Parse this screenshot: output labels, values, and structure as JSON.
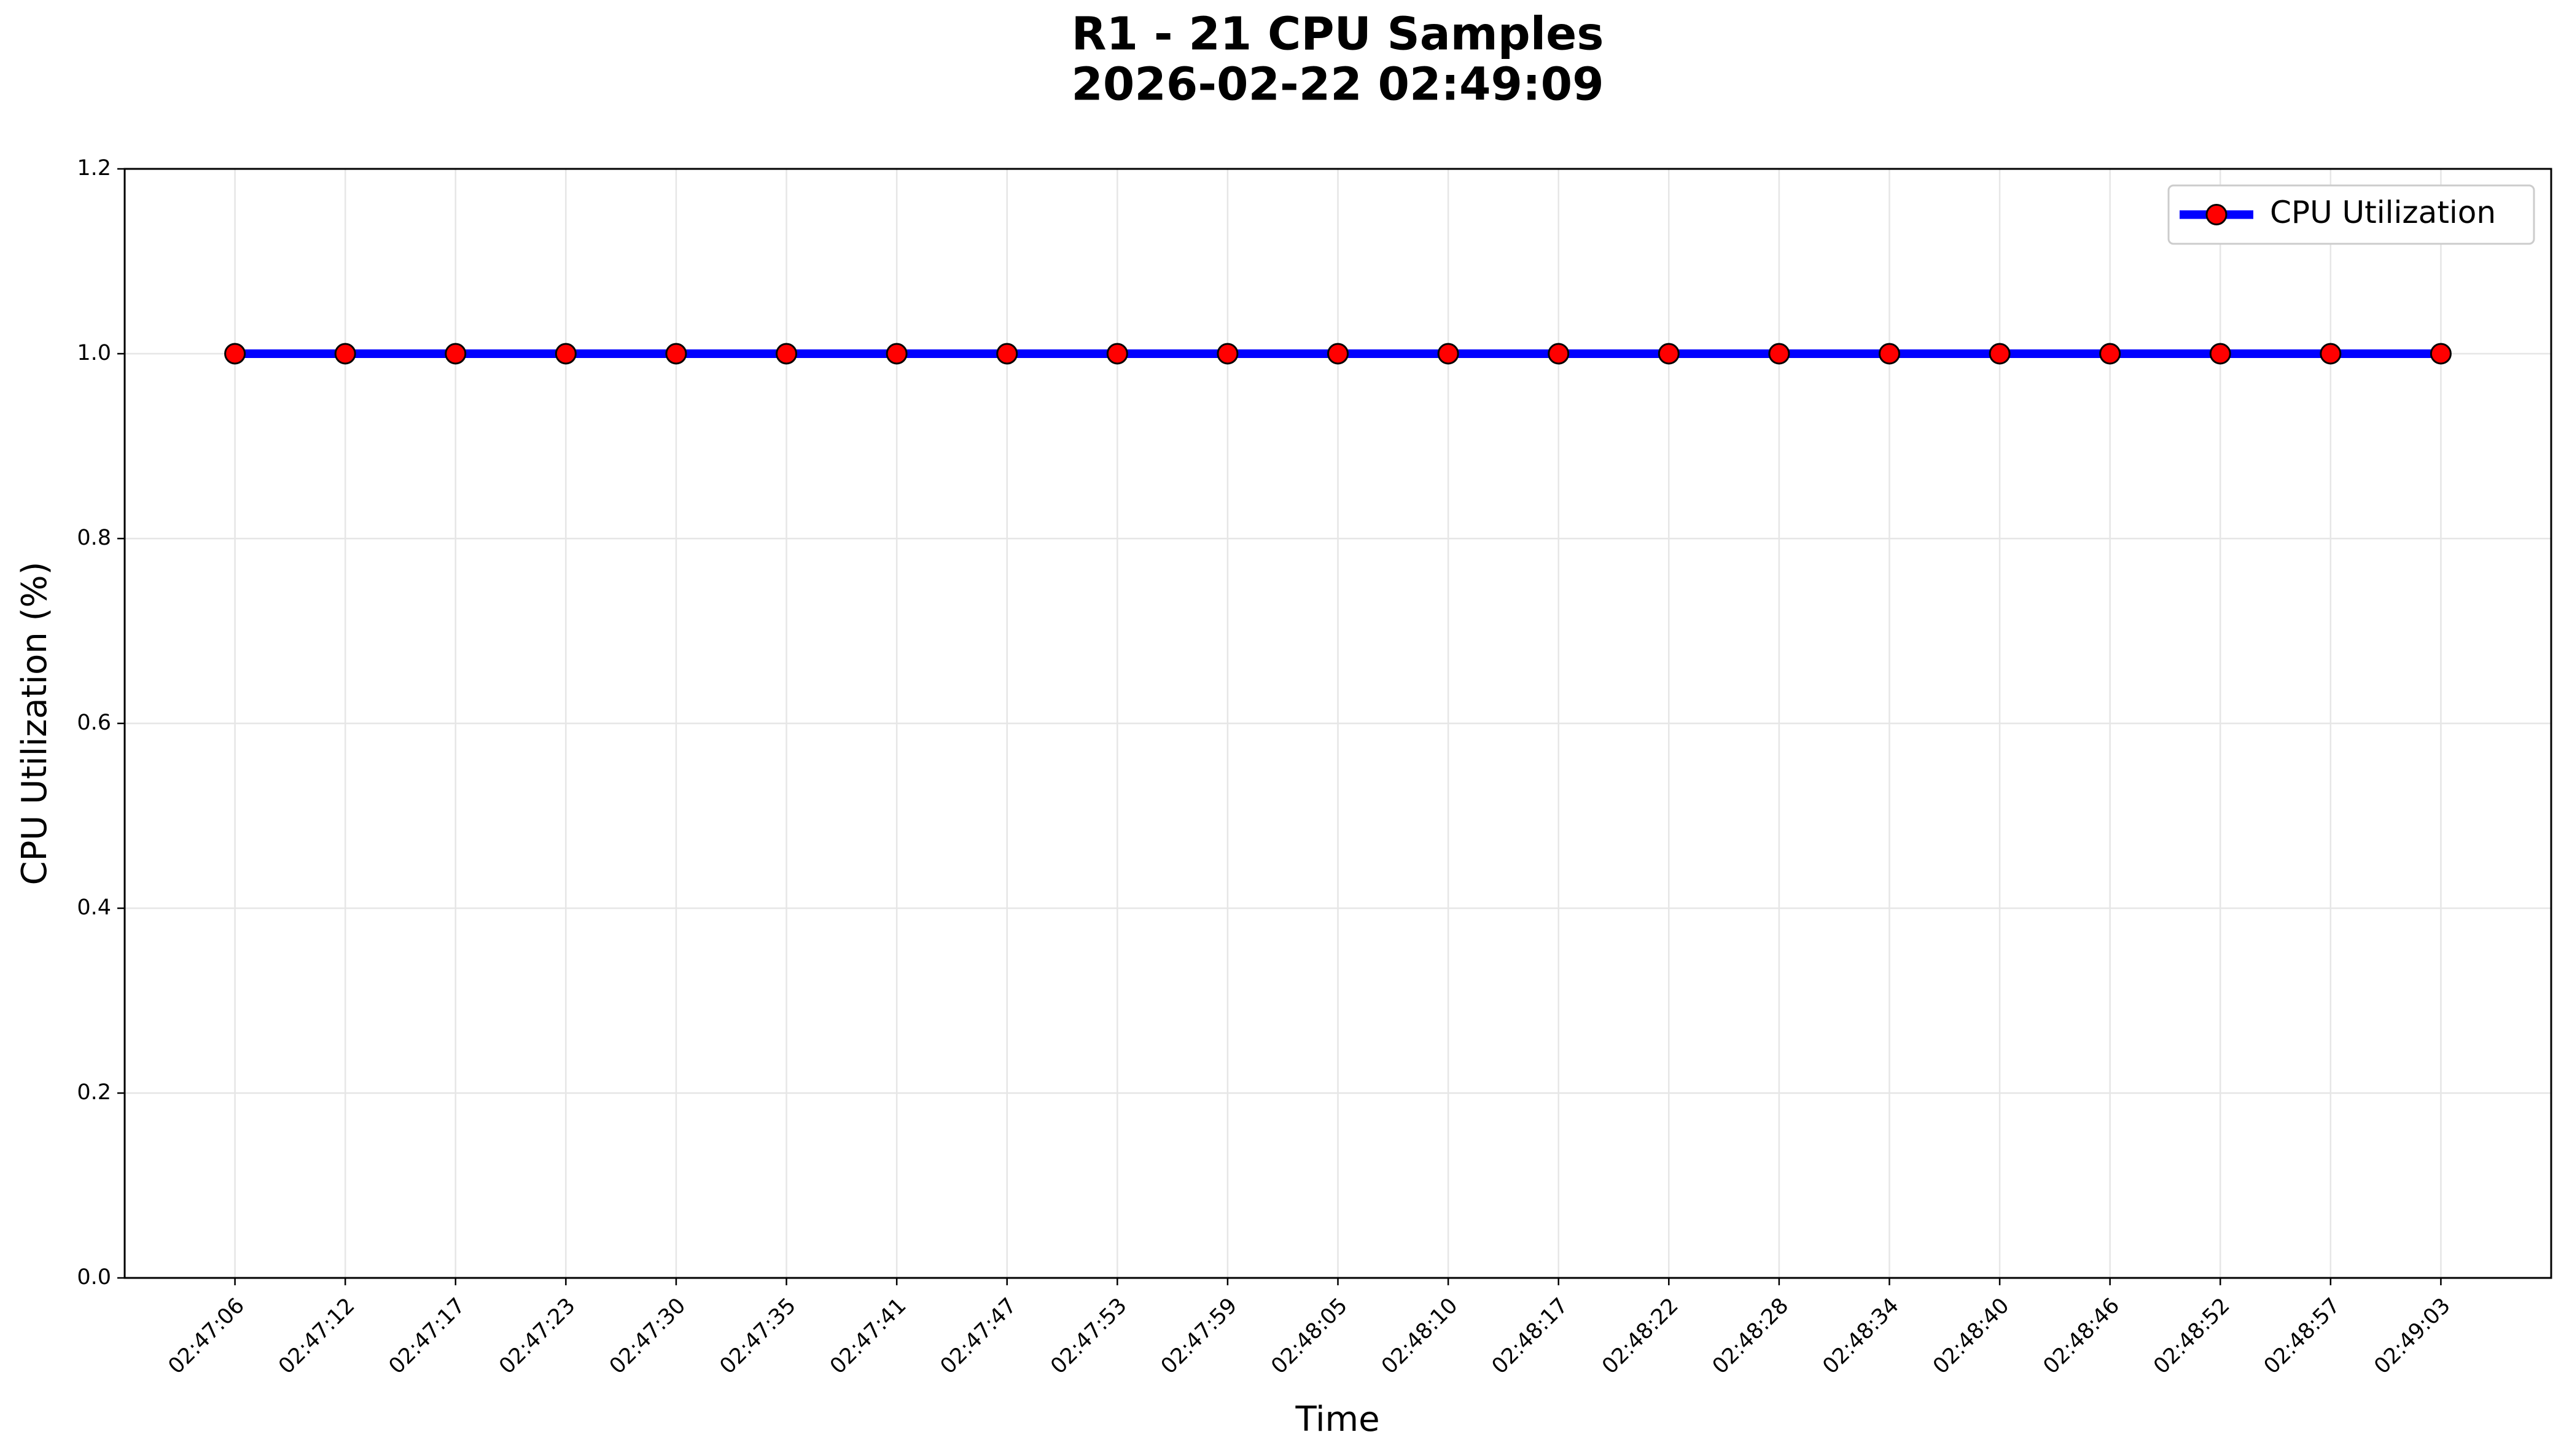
{
  "chart_data": {
    "type": "line",
    "title": "R1 - 21 CPU Samples",
    "subtitle": "2026-02-22 02:49:09",
    "x_label": "Time",
    "y_label": "CPU Utilization (%)",
    "categories": [
      "02:47:06",
      "02:47:12",
      "02:47:17",
      "02:47:23",
      "02:47:30",
      "02:47:35",
      "02:47:41",
      "02:47:47",
      "02:47:53",
      "02:47:59",
      "02:48:05",
      "02:48:10",
      "02:48:17",
      "02:48:22",
      "02:48:28",
      "02:48:34",
      "02:48:40",
      "02:48:46",
      "02:48:52",
      "02:48:57",
      "02:49:03"
    ],
    "series": [
      {
        "name": "CPU Utilization",
        "color": "#0000ff",
        "marker_color": "#ff0000",
        "values": [
          1.0,
          1.0,
          1.0,
          1.0,
          1.0,
          1.0,
          1.0,
          1.0,
          1.0,
          1.0,
          1.0,
          1.0,
          1.0,
          1.0,
          1.0,
          1.0,
          1.0,
          1.0,
          1.0,
          1.0,
          1.0
        ]
      }
    ],
    "ylim": [
      0,
      1.2
    ],
    "yticks": [
      {
        "value": 0,
        "label": "0.0"
      },
      0.2,
      0.4,
      0.6,
      0.8,
      {
        "value": 1,
        "label": "1.0"
      },
      1.2
    ],
    "grid": true,
    "legend": "upper right"
  }
}
